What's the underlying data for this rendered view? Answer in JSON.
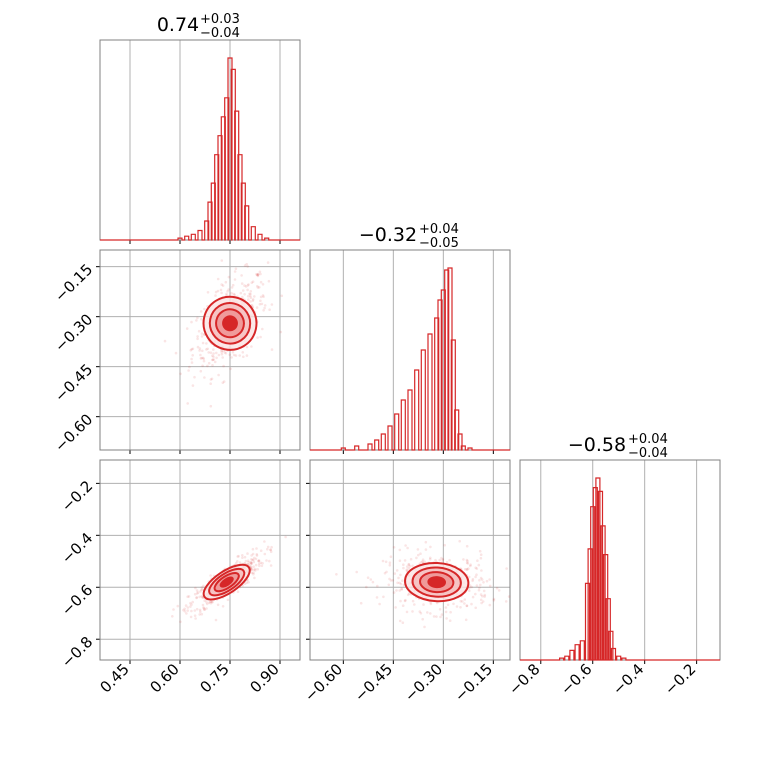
{
  "chart_data": {
    "type": "corner",
    "color": "#d62728",
    "grid": true,
    "parameters": [
      {
        "title_median": "0.74",
        "title_plus": "+0.03",
        "title_minus": "−0.04",
        "range": [
          0.36,
          0.96
        ],
        "ticks": [
          0.45,
          0.6,
          0.75,
          0.9
        ],
        "tick_labels": [
          "0.45",
          "0.60",
          "0.75",
          "0.90"
        ]
      },
      {
        "title_median": "−0.32",
        "title_plus": "+0.04",
        "title_minus": "−0.05",
        "range": [
          -0.7,
          -0.1
        ],
        "ticks": [
          -0.6,
          -0.45,
          -0.3,
          -0.15
        ],
        "tick_labels": [
          "−0.60",
          "−0.45",
          "−0.30",
          "−0.15"
        ]
      },
      {
        "title_median": "−0.58",
        "title_plus": "+0.04",
        "title_minus": "−0.04",
        "range": [
          -0.88,
          -0.11
        ],
        "ticks": [
          -0.8,
          -0.6,
          -0.4,
          -0.2
        ],
        "tick_labels": [
          "−0.8",
          "−0.6",
          "−0.4",
          "−0.2"
        ]
      }
    ],
    "histograms": [
      {
        "param": 0,
        "bins": [
          0.6,
          0.62,
          0.64,
          0.66,
          0.68,
          0.69,
          0.7,
          0.71,
          0.72,
          0.73,
          0.74,
          0.75,
          0.76,
          0.77,
          0.78,
          0.79,
          0.8,
          0.82,
          0.84,
          0.86
        ],
        "counts": [
          0.01,
          0.02,
          0.03,
          0.05,
          0.1,
          0.2,
          0.3,
          0.45,
          0.55,
          0.65,
          0.75,
          0.96,
          0.9,
          0.68,
          0.45,
          0.3,
          0.18,
          0.07,
          0.03,
          0.01
        ]
      },
      {
        "param": 1,
        "bins": [
          -0.6,
          -0.56,
          -0.52,
          -0.5,
          -0.48,
          -0.46,
          -0.44,
          -0.42,
          -0.4,
          -0.38,
          -0.36,
          -0.34,
          -0.32,
          -0.31,
          -0.3,
          -0.29,
          -0.28,
          -0.27,
          -0.26,
          -0.25,
          -0.24,
          -0.22
        ],
        "counts": [
          0.01,
          0.02,
          0.03,
          0.05,
          0.08,
          0.12,
          0.18,
          0.25,
          0.3,
          0.4,
          0.5,
          0.58,
          0.66,
          0.75,
          0.8,
          0.9,
          0.91,
          0.55,
          0.2,
          0.08,
          0.02,
          0.01
        ]
      },
      {
        "param": 2,
        "bins": [
          -0.72,
          -0.7,
          -0.68,
          -0.66,
          -0.64,
          -0.62,
          -0.61,
          -0.6,
          -0.59,
          -0.58,
          -0.57,
          -0.56,
          -0.55,
          -0.54,
          -0.53,
          -0.52,
          -0.5,
          -0.48
        ],
        "counts": [
          0.01,
          0.02,
          0.05,
          0.08,
          0.1,
          0.4,
          0.58,
          0.8,
          0.9,
          0.95,
          0.88,
          0.7,
          0.55,
          0.32,
          0.15,
          0.06,
          0.02,
          0.01
        ]
      }
    ],
    "joint_2d": [
      {
        "x_param": 0,
        "y_param": 1,
        "mean": [
          0.75,
          -0.32
        ],
        "contour_levels": 4
      },
      {
        "x_param": 0,
        "y_param": 2,
        "mean": [
          0.74,
          -0.58
        ],
        "contour_levels": 4
      },
      {
        "x_param": 1,
        "y_param": 2,
        "mean": [
          -0.32,
          -0.58
        ],
        "contour_levels": 4
      }
    ]
  }
}
